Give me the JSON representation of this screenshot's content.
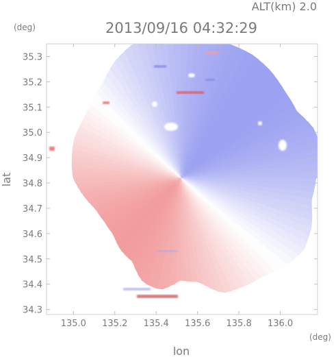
{
  "chart_data": {
    "type": "heatmap",
    "title": "2013/09/16 04:32:29",
    "altitude_label": "ALT(km) 2.0",
    "xlabel": "lon",
    "ylabel": "lat",
    "x_unit": "(deg)",
    "y_unit": "(deg)",
    "xlim": [
      134.87,
      136.18
    ],
    "ylim": [
      34.28,
      35.35
    ],
    "x_ticks": [
      "135.0",
      "135.2",
      "135.4",
      "135.6",
      "135.8",
      "136.0"
    ],
    "y_ticks": [
      "34.3",
      "34.4",
      "34.5",
      "34.6",
      "34.7",
      "34.8",
      "34.9",
      "35.0",
      "35.1",
      "35.2",
      "35.3"
    ],
    "radar_center": [
      135.52,
      34.82
    ],
    "colors": {
      "approaching": "#8a90ee",
      "receding": "#f08c8c",
      "neutral": "#ffffff"
    },
    "grid": false
  }
}
